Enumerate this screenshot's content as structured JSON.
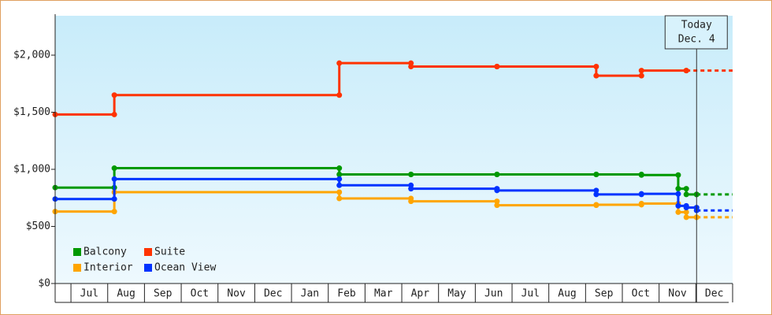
{
  "chart_data": {
    "type": "step-line",
    "categories": [
      "Jul",
      "Aug",
      "Sep",
      "Oct",
      "Nov",
      "Dec",
      "Jan",
      "Feb",
      "Mar",
      "Apr",
      "May",
      "Jun",
      "Jul",
      "Aug",
      "Sep",
      "Oct",
      "Nov",
      "Dec"
    ],
    "xlim": [
      -0.43,
      18
    ],
    "ylim": [
      0,
      2345
    ],
    "yticks": [
      {
        "value": 0,
        "label": "$0"
      },
      {
        "value": 500,
        "label": "$500"
      },
      {
        "value": 1000,
        "label": "$1,000"
      },
      {
        "value": 1500,
        "label": "$1,500"
      },
      {
        "value": 2000,
        "label": "$2,000"
      }
    ],
    "legend": "lower left",
    "today": {
      "x": 17.02,
      "label": [
        "Today",
        "Dec. 4"
      ]
    },
    "series": [
      {
        "name": "Balcony",
        "color": "#009900",
        "x": [
          -0.43,
          1.18,
          7.3,
          9.25,
          11.59,
          14.29,
          15.52,
          16.52,
          16.74,
          17.02
        ],
        "values": [
          840,
          1010,
          955,
          955,
          955,
          955,
          950,
          830,
          780,
          780
        ]
      },
      {
        "name": "Suite",
        "color": "#ff3300",
        "x": [
          -0.43,
          1.18,
          7.3,
          9.25,
          11.59,
          14.29,
          15.52,
          16.74
        ],
        "values": [
          1480,
          1650,
          1930,
          1900,
          1900,
          1820,
          1865,
          1865
        ]
      },
      {
        "name": "Interior",
        "color": "#ffa500",
        "x": [
          -0.43,
          1.18,
          7.3,
          9.25,
          11.59,
          14.29,
          15.52,
          16.52,
          16.74,
          17.02
        ],
        "values": [
          630,
          800,
          745,
          720,
          685,
          690,
          700,
          625,
          580,
          580
        ]
      },
      {
        "name": "Ocean View",
        "color": "#0033ff",
        "x": [
          -0.43,
          1.18,
          7.3,
          9.25,
          11.59,
          14.29,
          15.52,
          16.52,
          16.74,
          17.02
        ],
        "values": [
          740,
          915,
          860,
          830,
          815,
          780,
          785,
          680,
          665,
          640
        ]
      }
    ]
  }
}
